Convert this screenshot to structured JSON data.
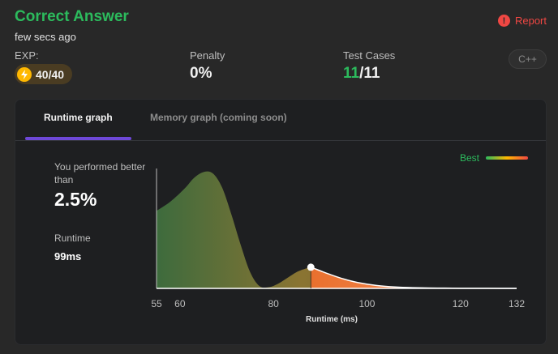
{
  "header": {
    "title": "Correct Answer",
    "subtitle": "few secs ago",
    "report_label": "Report"
  },
  "stats": {
    "exp_label": "EXP:",
    "exp_value": "40/40",
    "penalty_label": "Penalty",
    "penalty_value": "0%",
    "testcases_label": "Test Cases",
    "testcases_passed": "11",
    "testcases_total": "/11",
    "language": "C++"
  },
  "tabs": [
    {
      "label": "Runtime graph",
      "active": true
    },
    {
      "label": "Memory graph (coming soon)",
      "active": false
    }
  ],
  "performance": {
    "label": "You performed better than",
    "percentile": "2.5%",
    "runtime_label": "Runtime",
    "runtime_value": "99ms"
  },
  "legend": {
    "label": "Best"
  },
  "colors": {
    "accepted": "#2cbb5d",
    "danger": "#ef4743",
    "accent": "#6e48d8",
    "gold": "#ffb800"
  },
  "chart_data": {
    "type": "area",
    "xlabel": "Runtime (ms)",
    "ylabel": "",
    "xlim": [
      55,
      132
    ],
    "x_ticks": [
      "55",
      "60",
      "80",
      "100",
      "120",
      "132"
    ],
    "x": [
      55,
      58,
      61,
      63,
      65,
      67,
      69,
      71,
      73,
      75,
      77,
      79,
      81,
      83,
      85,
      87,
      88,
      90,
      92,
      95,
      98,
      102,
      106,
      110,
      115,
      120,
      126,
      132
    ],
    "values": [
      0.66,
      0.74,
      0.85,
      0.94,
      0.99,
      0.98,
      0.86,
      0.63,
      0.37,
      0.14,
      0.02,
      0.01,
      0.04,
      0.09,
      0.14,
      0.17,
      0.18,
      0.15,
      0.12,
      0.08,
      0.05,
      0.025,
      0.012,
      0.006,
      0.003,
      0.001,
      0.0005,
      0.0
    ],
    "marker_x": 88,
    "highlight_from": 88,
    "grid": false
  }
}
